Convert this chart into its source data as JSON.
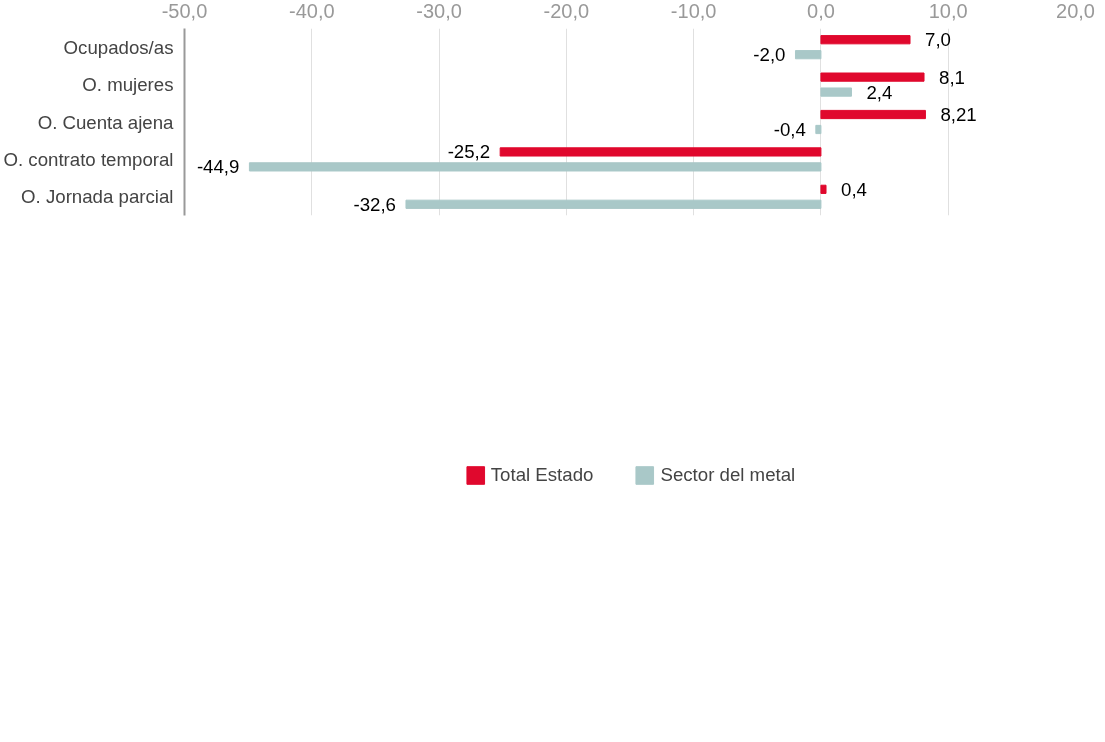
{
  "chart_data": {
    "type": "bar",
    "orientation": "horizontal",
    "categories": [
      "Ocupados/as",
      "O. mujeres",
      "O. Cuenta ajena",
      "O. contrato temporal",
      "O. Jornada parcial"
    ],
    "series": [
      {
        "name": "Total Estado",
        "color": "#e0082d",
        "values": [
          7.0,
          8.1,
          8.21,
          -25.2,
          0.4
        ],
        "value_labels": [
          "7,0",
          "8,1",
          "8,21",
          "-25,2",
          "0,4"
        ]
      },
      {
        "name": "Sector del metal",
        "color": "#a9c8c8",
        "values": [
          -2.0,
          2.4,
          -0.4,
          -44.9,
          -32.6
        ],
        "value_labels": [
          "-2,0",
          "2,4",
          "-0,4",
          "-44,9",
          "-32,6"
        ]
      }
    ],
    "xlim": [
      -50,
      20
    ],
    "xticks": [
      {
        "value": -50,
        "label": "-50,0"
      },
      {
        "value": -40,
        "label": "-40,0"
      },
      {
        "value": -30,
        "label": "-30,0"
      },
      {
        "value": -20,
        "label": "-20,0"
      },
      {
        "value": -10,
        "label": "-10,0"
      },
      {
        "value": 0,
        "label": "0,0"
      },
      {
        "value": 10,
        "label": "10,0"
      },
      {
        "value": 20,
        "label": "20,0"
      }
    ],
    "grid": "x",
    "legend": "bottom"
  }
}
